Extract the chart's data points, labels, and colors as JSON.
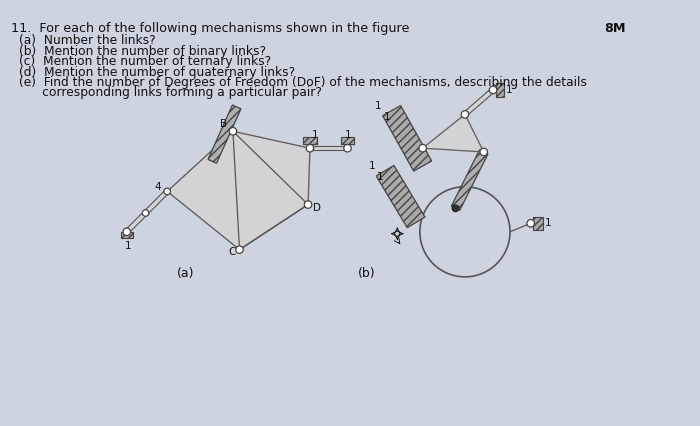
{
  "bg_color": "#cdd3df",
  "text_color": "#111111",
  "line_color": "#555555",
  "title_line1": "11.  For each of the following mechanisms shown in the figure",
  "mark": "8M",
  "sub_items": [
    "(a)  Number the links?",
    "(b)  Mention the number of binary links?",
    "(c)  Mention the number of ternary links?",
    "(d)  Mention the number of quaternary links?",
    "(e)  Find the number of Degrees of Freedom (DoF) of the mechanisms, describing the details",
    "      corresponding links forming a particular pair?"
  ],
  "label_a": "(a)",
  "label_b": "(b)",
  "figsize": [
    7.0,
    4.26
  ],
  "dpi": 100
}
